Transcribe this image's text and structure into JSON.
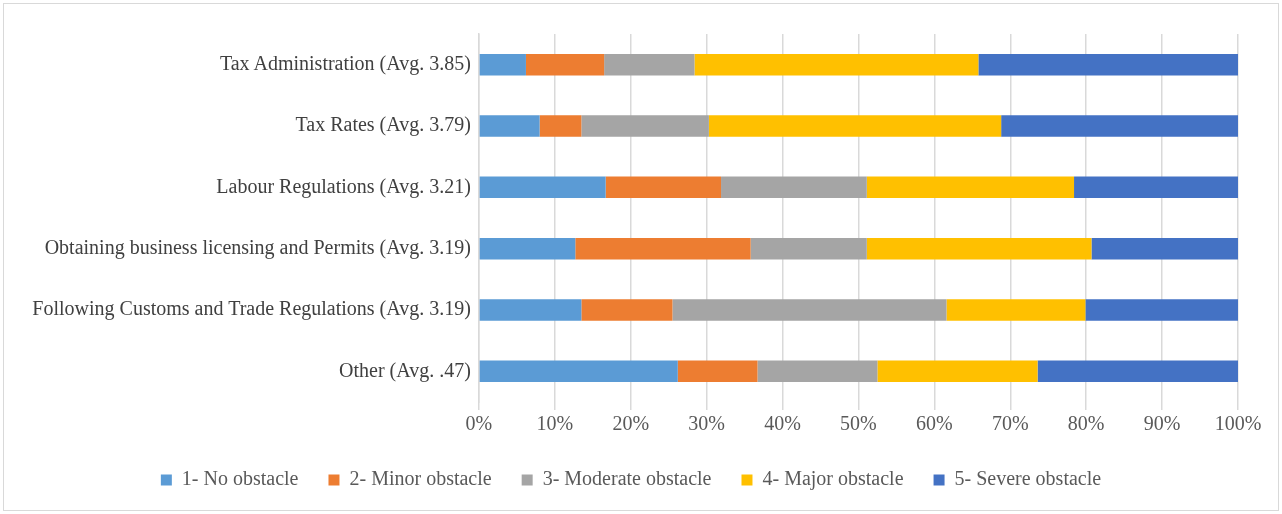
{
  "chart_data": {
    "type": "bar",
    "orientation": "horizontal",
    "stacked": true,
    "categories": [
      "Tax Administration (Avg. 3.85)",
      "Tax Rates (Avg. 3.79)",
      "Labour Regulations (Avg. 3.21)",
      "Obtaining business licensing and Permits (Avg. 3.19)",
      "Following Customs and Trade Regulations (Avg. 3.19)",
      "Other (Avg. .47)"
    ],
    "series": [
      {
        "name": "1- No obstacle",
        "color": "#5b9bd5",
        "values": [
          6.2,
          8.0,
          16.7,
          12.7,
          13.5,
          26.2
        ]
      },
      {
        "name": "2- Minor obstacle",
        "color": "#ed7d31",
        "values": [
          10.3,
          5.5,
          15.2,
          23.1,
          12.0,
          10.5
        ]
      },
      {
        "name": "3- Moderate obstacle",
        "color": "#a5a5a5",
        "values": [
          11.9,
          16.8,
          19.2,
          15.3,
          36.1,
          15.8
        ]
      },
      {
        "name": "4- Major obstacle",
        "color": "#ffc000",
        "values": [
          37.4,
          38.5,
          27.3,
          29.6,
          18.3,
          21.1
        ]
      },
      {
        "name": "5- Severe obstacle",
        "color": "#4472c4",
        "values": [
          34.2,
          31.2,
          21.6,
          19.3,
          20.1,
          26.4
        ]
      }
    ],
    "xlim": [
      0,
      100
    ],
    "xticks": [
      {
        "value": 0,
        "label": "0%"
      },
      {
        "value": 10,
        "label": "10%"
      },
      {
        "value": 20,
        "label": "20%"
      },
      {
        "value": 30,
        "label": "30%"
      },
      {
        "value": 40,
        "label": "40%"
      },
      {
        "value": 50,
        "label": "50%"
      },
      {
        "value": 60,
        "label": "60%"
      },
      {
        "value": 70,
        "label": "70%"
      },
      {
        "value": 80,
        "label": "80%"
      },
      {
        "value": 90,
        "label": "90%"
      },
      {
        "value": 100,
        "label": "100%"
      }
    ],
    "grid": "x",
    "legend": "bottom"
  }
}
